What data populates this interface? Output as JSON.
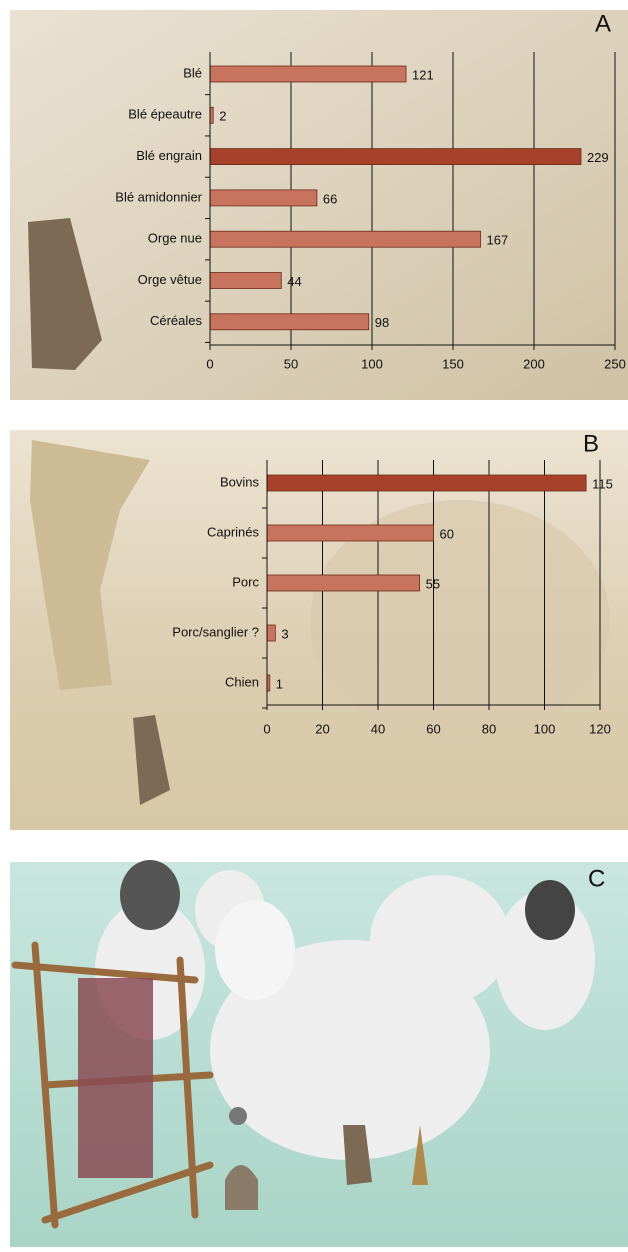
{
  "chart_data": [
    {
      "type": "bar",
      "orientation": "horizontal",
      "panel": "A",
      "categories": [
        "Blé",
        "Blé épeautre",
        "Blé engrain",
        "Blé amidonnier",
        "Orge nue",
        "Orge vêtue",
        "Céréales"
      ],
      "values": [
        121,
        2,
        229,
        66,
        167,
        44,
        98
      ],
      "colors": [
        "#c8735d",
        "#c8735d",
        "#a8412a",
        "#c8735d",
        "#c8735d",
        "#c8735d",
        "#c8735d"
      ],
      "xlim": [
        0,
        250
      ],
      "xticks": [
        0,
        50,
        100,
        150,
        200,
        250
      ],
      "grid": true
    },
    {
      "type": "bar",
      "orientation": "horizontal",
      "panel": "B",
      "categories": [
        "Bovins",
        "Caprinés",
        "Porc",
        "Porc/sanglier ?",
        "Chien"
      ],
      "values": [
        115,
        60,
        55,
        3,
        1
      ],
      "colors": [
        "#a8412a",
        "#c8735d",
        "#c8735d",
        "#c8735d",
        "#c8735d"
      ],
      "xlim": [
        0,
        120
      ],
      "xticks": [
        0,
        20,
        40,
        60,
        80,
        100,
        120
      ],
      "grid": true
    }
  ],
  "panel_c": {
    "label": "C"
  }
}
